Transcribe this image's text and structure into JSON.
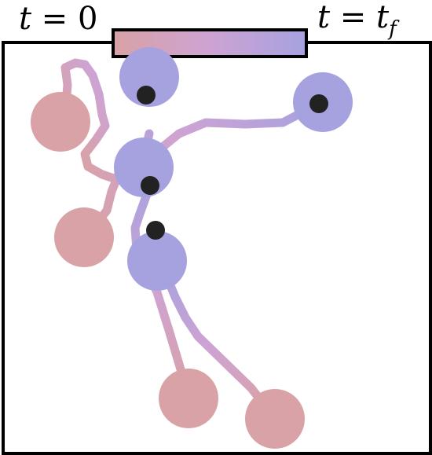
{
  "legend": {
    "start_label": "t = 0",
    "start_var": "t",
    "start_value": "0",
    "end_var": "t",
    "end_sub": "f",
    "gradient_start_color": "#d9a2a6",
    "gradient_mid_color": "#cda3d3",
    "gradient_end_color": "#a6a2df"
  },
  "colors": {
    "initial_disk": "#d9a2a6",
    "final_disk": "#a6a2df",
    "marker": "#222222",
    "frame": "#000000"
  },
  "trajectory_count": 5
}
